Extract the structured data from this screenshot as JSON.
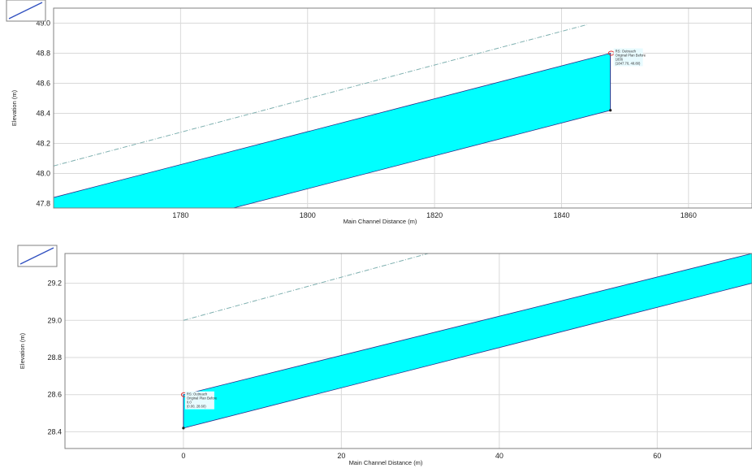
{
  "chart_data": [
    {
      "type": "area",
      "xlabel": "Main Channel Distance (m)",
      "ylabel": "Elevation (m)",
      "xlim": [
        1760,
        1870
      ],
      "ylim": [
        47.77,
        49.1
      ],
      "x_ticks": [
        1780,
        1800,
        1820,
        1840,
        1860
      ],
      "y_ticks": [
        47.8,
        48.0,
        48.2,
        48.4,
        48.6,
        48.8,
        49.0
      ],
      "grid": true,
      "series": [
        {
          "role": "water-surface-top",
          "x": [
            1760,
            1847.7
          ],
          "y": [
            47.84,
            48.8
          ]
        },
        {
          "role": "channel-bottom",
          "x": [
            1760,
            1847.7
          ],
          "y": [
            47.46,
            48.42
          ]
        },
        {
          "role": "dashed-line",
          "x": [
            1760,
            1844
          ],
          "y": [
            48.05,
            48.99
          ]
        }
      ],
      "annotation": {
        "x": 1847.7,
        "y": 48.8,
        "lines": [
          "RS: Outreach",
          "Original Plan Before",
          "1836",
          "(1847.70, 48.80)"
        ]
      }
    },
    {
      "type": "area",
      "xlabel": "Main Channel Distance (m)",
      "ylabel": "Elevation (m)",
      "xlim": [
        -15,
        72
      ],
      "ylim": [
        28.31,
        29.36
      ],
      "x_ticks": [
        0,
        20,
        40,
        60
      ],
      "y_ticks": [
        28.4,
        28.6,
        28.8,
        29.0,
        29.2
      ],
      "grid": true,
      "series": [
        {
          "role": "water-surface-top",
          "x": [
            0,
            72
          ],
          "y": [
            28.6,
            29.36
          ]
        },
        {
          "role": "channel-bottom",
          "x": [
            0,
            72
          ],
          "y": [
            28.42,
            29.2
          ]
        },
        {
          "role": "dashed-line",
          "x": [
            0,
            31
          ],
          "y": [
            29.0,
            29.36
          ]
        }
      ],
      "annotation": {
        "x": 0,
        "y": 28.6,
        "lines": [
          "RS: Outreach",
          "Original Plan Before",
          "0.0",
          "(0.00, 28.60)"
        ]
      }
    }
  ]
}
